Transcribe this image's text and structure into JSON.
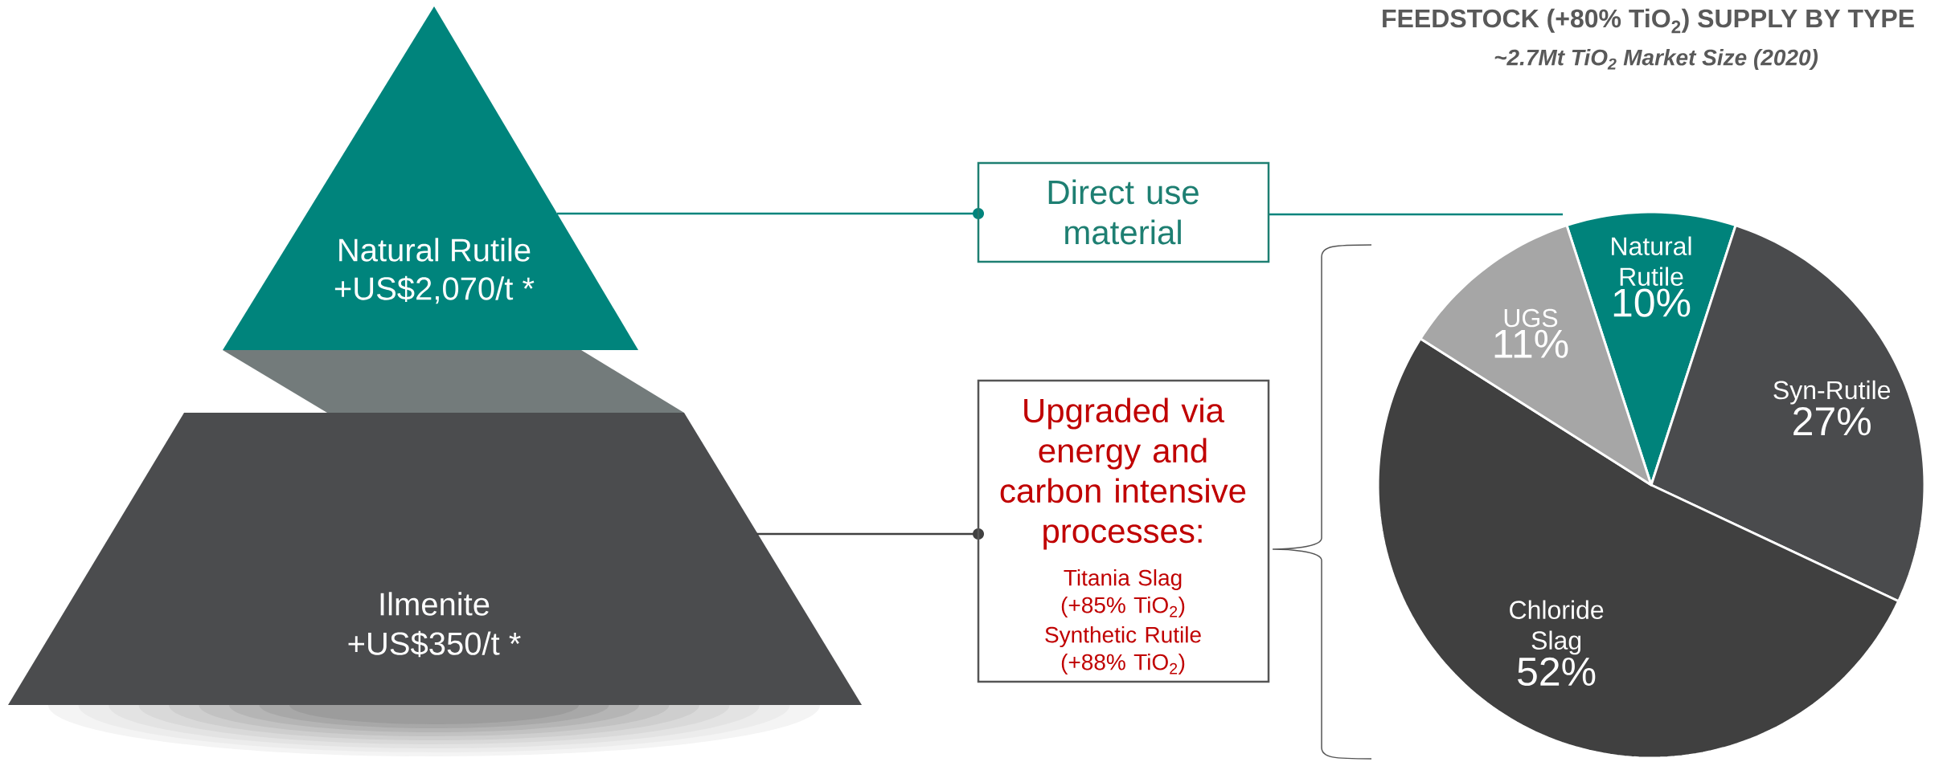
{
  "chart_data": {
    "type": "pie",
    "title": "FEEDSTOCK (+80% TiO$_{2}$) SUPPLY BY TYPE",
    "subtitle": "~2.7Mt TiO$_{2}$ Market Size (2020)",
    "categories": [
      "Natural Rutile",
      "Syn-Rutile",
      "Chloride Slag",
      "UGS"
    ],
    "values": [
      10,
      27,
      52,
      11
    ],
    "colors": [
      "#00837b",
      "#4a4b4d",
      "#404040",
      "#a6a6a6"
    ],
    "value_labels": [
      "10%",
      "27%",
      "52%",
      "11%"
    ],
    "annotations": [
      "Natural Rutile",
      "+US$2,070/t *",
      "Ilmenite",
      "+US$350/t *",
      "Direct use material",
      "Upgraded via energy and carbon intensive processes:",
      "Titania Slag (+85% TiO$_{2}$)",
      "Synthetic Rutile (+88% TiO$_{2}$)"
    ]
  }
}
